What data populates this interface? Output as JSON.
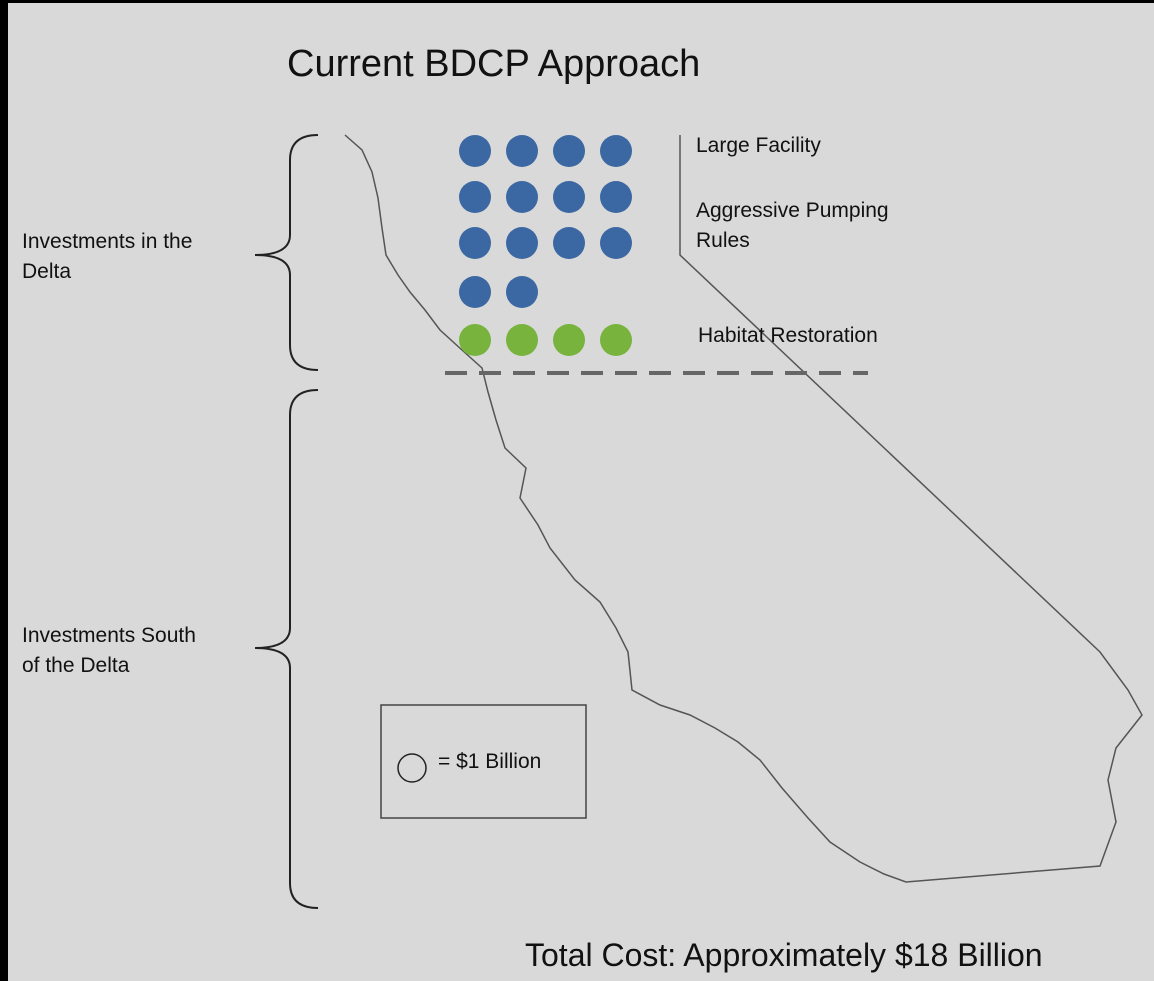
{
  "title": "Current BDCP Approach",
  "brackets": [
    {
      "label": "Investments in the Delta"
    },
    {
      "label": "Investments South of the Delta"
    }
  ],
  "cost_groups": [
    {
      "color": "#3b67a2",
      "count": 14
    },
    {
      "color": "#78b33e",
      "count": 4
    }
  ],
  "items": [
    "Large Facility",
    "Aggressive Pumping Rules",
    "Habitat Restoration"
  ],
  "legend": "= $1 Billion",
  "total": "Total Cost: Approximately $18 Billion"
}
